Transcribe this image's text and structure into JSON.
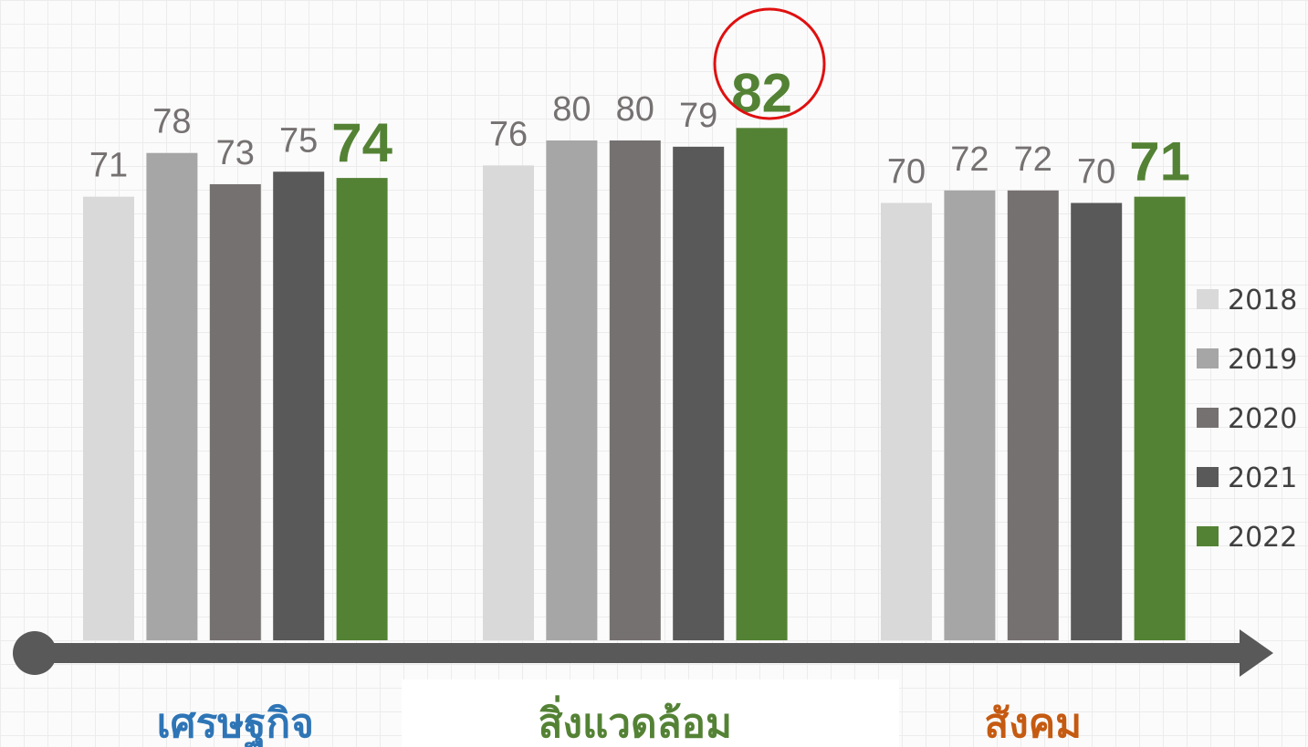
{
  "chart_data": {
    "type": "bar",
    "categories": [
      "เศรษฐกิจ",
      "สิ่งแวดล้อม",
      "สังคม"
    ],
    "category_colors": [
      "#2e75b6",
      "#548235",
      "#c55a11"
    ],
    "series": [
      {
        "name": "2018",
        "color": "#d9d9d9",
        "values": [
          71,
          76,
          70
        ]
      },
      {
        "name": "2019",
        "color": "#a6a6a6",
        "values": [
          78,
          80,
          72
        ]
      },
      {
        "name": "2020",
        "color": "#767171",
        "values": [
          73,
          80,
          72
        ]
      },
      {
        "name": "2021",
        "color": "#595959",
        "values": [
          75,
          79,
          70
        ]
      },
      {
        "name": "2022",
        "color": "#548235",
        "values": [
          74,
          82,
          71
        ]
      }
    ],
    "ylim": [
      0,
      100
    ],
    "legend": "right"
  }
}
